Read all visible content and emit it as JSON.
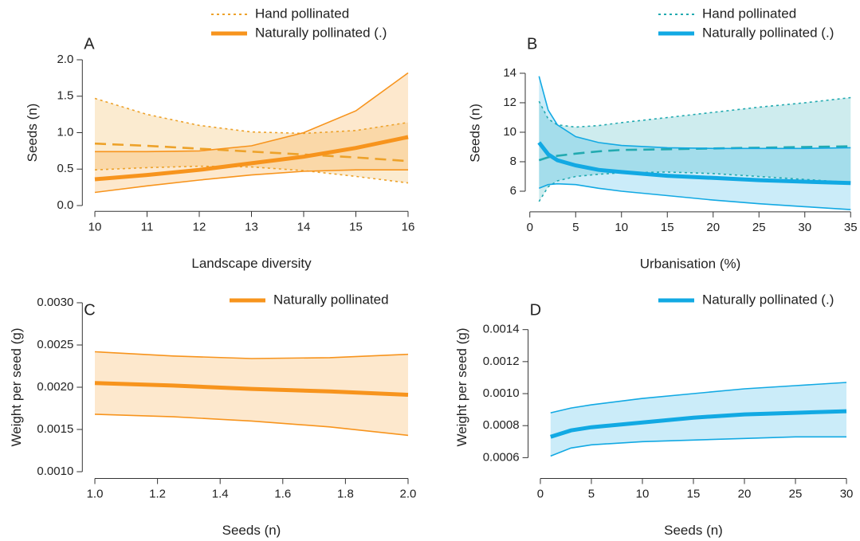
{
  "chart_data": [
    {
      "type": "line",
      "panel_label": "A",
      "xlabel": "Landscape diversity",
      "ylabel": "Seeds (n)",
      "xlim": [
        9.76,
        16.24
      ],
      "ylim": [
        -0.08,
        2.08
      ],
      "xticks": [
        10,
        11,
        12,
        13,
        14,
        15,
        16
      ],
      "yticks": [
        {
          "value": 0,
          "label": "0.0"
        },
        {
          "value": 0.5,
          "label": "0.5"
        },
        {
          "value": 1,
          "label": "1.0"
        },
        {
          "value": 1.5,
          "label": "1.5"
        },
        {
          "value": 2,
          "label": "2.0"
        }
      ],
      "x": [
        10,
        11,
        12,
        13,
        14,
        15,
        16
      ],
      "series": [
        {
          "name": "Hand pollinated",
          "color": "#eda22a",
          "line_style": "dashed",
          "bound_style": "dotted",
          "values": [
            0.85,
            0.82,
            0.78,
            0.74,
            0.7,
            0.66,
            0.61
          ],
          "upper": [
            1.47,
            1.25,
            1.1,
            1.01,
            0.99,
            1.03,
            1.14
          ],
          "lower": [
            0.49,
            0.52,
            0.54,
            0.53,
            0.48,
            0.4,
            0.31
          ]
        },
        {
          "name": "Naturally pollinated (.)",
          "color": "#f7941d",
          "line_style": "solid",
          "bound_style": "solid",
          "values": [
            0.36,
            0.42,
            0.49,
            0.58,
            0.67,
            0.79,
            0.94
          ],
          "upper": [
            0.74,
            0.74,
            0.75,
            0.82,
            1.0,
            1.3,
            1.82
          ],
          "lower": [
            0.18,
            0.27,
            0.35,
            0.42,
            0.47,
            0.49,
            0.49
          ]
        }
      ]
    },
    {
      "type": "line",
      "panel_label": "B",
      "xlabel": "Urbanisation (%)",
      "ylabel": "Seeds (n)",
      "xlim": [
        -0.5,
        35.5
      ],
      "ylim": [
        4.6,
        15.3
      ],
      "xticks": [
        0,
        5,
        10,
        15,
        20,
        25,
        30,
        35
      ],
      "yticks": [
        6,
        8,
        10,
        12,
        14
      ],
      "x": [
        1,
        2,
        3,
        5,
        7.5,
        10,
        15,
        20,
        25,
        30,
        35
      ],
      "series": [
        {
          "name": "Hand pollinated",
          "color": "#22aab0",
          "line_style": "dashed",
          "bound_style": "dotted",
          "values": [
            8.1,
            8.3,
            8.4,
            8.55,
            8.7,
            8.8,
            8.85,
            8.9,
            8.95,
            9.0,
            9.05
          ],
          "upper": [
            12.1,
            10.9,
            10.5,
            10.35,
            10.45,
            10.65,
            11.0,
            11.35,
            11.7,
            12.0,
            12.35
          ],
          "lower": [
            5.3,
            6.3,
            6.7,
            7.0,
            7.15,
            7.25,
            7.3,
            7.2,
            7.0,
            6.8,
            6.6
          ]
        },
        {
          "name": "Naturally pollinated (.)",
          "color": "#12a9e3",
          "line_style": "solid",
          "bound_style": "solid",
          "values": [
            9.3,
            8.5,
            8.1,
            7.75,
            7.45,
            7.3,
            7.05,
            6.9,
            6.75,
            6.65,
            6.55
          ],
          "upper": [
            13.8,
            11.5,
            10.5,
            9.7,
            9.3,
            9.1,
            8.95,
            8.9,
            8.9,
            8.9,
            8.95
          ],
          "lower": [
            6.2,
            6.45,
            6.5,
            6.45,
            6.2,
            6.0,
            5.7,
            5.4,
            5.15,
            4.95,
            4.75
          ]
        }
      ]
    },
    {
      "type": "line",
      "panel_label": "C",
      "xlabel": "Seeds (n)",
      "ylabel": "Weight per seed (g)",
      "xlim": [
        0.96,
        2.04
      ],
      "ylim": [
        0.00092,
        0.00308
      ],
      "xticks": [
        {
          "value": 1,
          "label": "1.0"
        },
        1.2,
        1.4,
        1.6,
        1.8,
        {
          "value": 2,
          "label": "2.0"
        }
      ],
      "yticks": [
        {
          "value": 0.001,
          "label": "0.0010"
        },
        {
          "value": 0.0015,
          "label": "0.0015"
        },
        {
          "value": 0.002,
          "label": "0.0020"
        },
        {
          "value": 0.0025,
          "label": "0.0025"
        },
        {
          "value": 0.003,
          "label": "0.0030"
        }
      ],
      "x": [
        1.0,
        1.25,
        1.5,
        1.75,
        2.0
      ],
      "series": [
        {
          "name": "Naturally pollinated",
          "color": "#f7941d",
          "line_style": "solid",
          "bound_style": "solid",
          "values": [
            0.00205,
            0.00202,
            0.00198,
            0.00195,
            0.00191
          ],
          "upper": [
            0.00242,
            0.00237,
            0.00234,
            0.00235,
            0.00239
          ],
          "lower": [
            0.00168,
            0.00165,
            0.0016,
            0.00153,
            0.00143
          ]
        }
      ]
    },
    {
      "type": "line",
      "panel_label": "D",
      "xlabel": "Seeds (n)",
      "ylabel": "Weight per seed (g)",
      "xlim": [
        -1.2,
        31.2
      ],
      "ylim": [
        0.00047,
        0.00161
      ],
      "xticks": [
        0,
        5,
        10,
        15,
        20,
        25,
        30
      ],
      "yticks": [
        {
          "value": 0.0006,
          "label": "0.0006"
        },
        {
          "value": 0.0008,
          "label": "0.0008"
        },
        {
          "value": 0.001,
          "label": "0.0010"
        },
        {
          "value": 0.0012,
          "label": "0.0012"
        },
        {
          "value": 0.0014,
          "label": "0.0014"
        }
      ],
      "x": [
        1,
        3,
        5,
        10,
        15,
        20,
        25,
        30
      ],
      "series": [
        {
          "name": "Naturally pollinated (.)",
          "color": "#12a9e3",
          "line_style": "solid",
          "bound_style": "solid",
          "values": [
            0.00073,
            0.00077,
            0.00079,
            0.00082,
            0.00085,
            0.00087,
            0.00088,
            0.00089
          ],
          "upper": [
            0.00088,
            0.00091,
            0.00093,
            0.00097,
            0.001,
            0.00103,
            0.00105,
            0.00107
          ],
          "lower": [
            0.00061,
            0.00066,
            0.00068,
            0.0007,
            0.00071,
            0.00072,
            0.00073,
            0.00073
          ]
        }
      ]
    }
  ]
}
